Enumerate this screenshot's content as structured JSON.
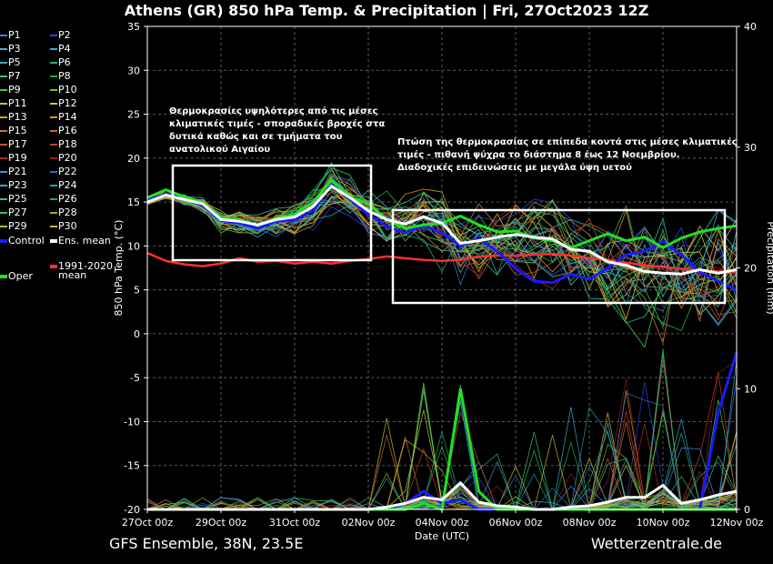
{
  "title": "Athens  (GR)  850 hPa Temp. & Precipitation | Fri, 27Oct2023 12Z",
  "footer": {
    "left": "GFS Ensemble, 38N, 23.5E",
    "right": "Wetterzentrale.de"
  },
  "annotations": {
    "left_box": [
      "Θερμοκρασίες υψηλότερες από τις μέσες",
      "κλιματικές τιμές - σποραδικές βροχές στα",
      "δυτικά καθώς και σε τμήματα του",
      "ανατολικού Αιγαίου"
    ],
    "right_box": [
      "Πτώση της θερμοκρασίας σε επίπεδα κοντά στις μέσες κλιματικές",
      "τιμές - πιθανή ψύχρα το διάστημα 8 έως 12 Νοεμβρίου.",
      "Διαδοχικές επιδεινώσεις με μεγάλα ύψη υετού"
    ]
  },
  "legend": {
    "members": [
      {
        "label": "P1",
        "color": "#4a7bd0"
      },
      {
        "label": "P2",
        "color": "#2a3fe0"
      },
      {
        "label": "P3",
        "color": "#5aa0e0"
      },
      {
        "label": "P4",
        "color": "#3aa8d8"
      },
      {
        "label": "P5",
        "color": "#2ab0b8"
      },
      {
        "label": "P6",
        "color": "#1fb870"
      },
      {
        "label": "P7",
        "color": "#28c890"
      },
      {
        "label": "P8",
        "color": "#20b040"
      },
      {
        "label": "P9",
        "color": "#40d040"
      },
      {
        "label": "P10",
        "color": "#78c020"
      },
      {
        "label": "P11",
        "color": "#c8c030"
      },
      {
        "label": "P12",
        "color": "#d8c040"
      },
      {
        "label": "P13",
        "color": "#d8a020"
      },
      {
        "label": "P14",
        "color": "#e08a20"
      },
      {
        "label": "P15",
        "color": "#c87838"
      },
      {
        "label": "P16",
        "color": "#c86a30"
      },
      {
        "label": "P17",
        "color": "#b85828"
      },
      {
        "label": "P18",
        "color": "#c04020"
      },
      {
        "label": "P19",
        "color": "#b02828"
      },
      {
        "label": "P20",
        "color": "#902020"
      },
      {
        "label": "P21",
        "color": "#4a88e0"
      },
      {
        "label": "P22",
        "color": "#3070c8"
      },
      {
        "label": "P23",
        "color": "#40a0c8"
      },
      {
        "label": "P24",
        "color": "#20a0b0"
      },
      {
        "label": "P25",
        "color": "#38b8a0"
      },
      {
        "label": "P26",
        "color": "#28a868"
      },
      {
        "label": "P27",
        "color": "#30c058"
      },
      {
        "label": "P28",
        "color": "#88b828"
      },
      {
        "label": "P29",
        "color": "#b8b830"
      },
      {
        "label": "P30",
        "color": "#d0b838"
      }
    ],
    "control": {
      "label": "Control",
      "color": "#1a1aff"
    },
    "ens_mean": {
      "label": "Ens. mean",
      "color": "#ffffff"
    },
    "oper": {
      "label": "Oper",
      "color": "#22e022"
    },
    "clim": {
      "label_line1": "1991-2020",
      "label_line2": "mean",
      "color": "#ff3030"
    }
  },
  "chart_data": {
    "type": "line",
    "xlabel": "Date (UTC)",
    "ylabel": "850 hPa Temp. (°C)",
    "y2label": "Precipitation (mm)",
    "ylim": [
      -20,
      35
    ],
    "y2lim": [
      0,
      40
    ],
    "yticks": [
      -20,
      -15,
      -10,
      -5,
      0,
      5,
      10,
      15,
      20,
      25,
      30,
      35
    ],
    "y2ticks": [
      0,
      10,
      20,
      30,
      40
    ],
    "x_tick_labels": [
      "27Oct 00z",
      "29Oct 00z",
      "31Oct 00z",
      "02Nov 00z",
      "04Nov 00z",
      "06Nov 00z",
      "08Nov 00z",
      "10Nov 00z",
      "12Nov 00z"
    ],
    "x_tick_hours": [
      0,
      48,
      96,
      144,
      192,
      240,
      288,
      336,
      384
    ],
    "xlim_hours": [
      0,
      384
    ],
    "grid": true,
    "clim_mean": {
      "hours": [
        0,
        12,
        24,
        36,
        48,
        60,
        72,
        84,
        96,
        108,
        120,
        132,
        144,
        156,
        168,
        180,
        192,
        204,
        216,
        228,
        240,
        252,
        264,
        276,
        288,
        300,
        312,
        324,
        336,
        348,
        360,
        372,
        384
      ],
      "values": [
        9.2,
        8.3,
        7.9,
        7.7,
        8.0,
        8.6,
        8.2,
        8.3,
        8.0,
        8.2,
        8.0,
        8.3,
        8.5,
        8.8,
        8.6,
        8.4,
        8.3,
        8.4,
        8.8,
        8.9,
        8.9,
        9.0,
        9.1,
        8.9,
        8.6,
        8.4,
        8.1,
        7.8,
        7.6,
        7.4,
        7.2,
        7.1,
        7.0
      ]
    },
    "ens_mean": {
      "hours": [
        0,
        12,
        24,
        36,
        48,
        60,
        72,
        84,
        96,
        108,
        120,
        132,
        144,
        156,
        168,
        180,
        192,
        204,
        216,
        228,
        240,
        252,
        264,
        276,
        288,
        300,
        312,
        324,
        336,
        348,
        360,
        372,
        384
      ],
      "temp": [
        15.0,
        15.8,
        15.3,
        14.8,
        13.0,
        12.8,
        12.4,
        13.0,
        13.3,
        14.5,
        16.8,
        15.5,
        14.0,
        13.0,
        12.5,
        13.3,
        12.6,
        10.3,
        10.6,
        11.0,
        11.3,
        11.0,
        10.8,
        9.6,
        9.4,
        8.2,
        7.8,
        7.1,
        6.9,
        6.8,
        7.3,
        6.9,
        7.3
      ],
      "precip": [
        0,
        0,
        0,
        0,
        0,
        0,
        0,
        0,
        0,
        0,
        0,
        0,
        0,
        0.2,
        0.5,
        1.0,
        0.8,
        2.2,
        0.6,
        0.3,
        0.2,
        0,
        0,
        0.2,
        0.3,
        0.6,
        1.0,
        1.0,
        2.0,
        0.5,
        0.8,
        1.2,
        1.5
      ]
    },
    "control": {
      "hours": [
        0,
        12,
        24,
        36,
        48,
        60,
        72,
        84,
        96,
        108,
        120,
        132,
        144,
        156,
        168,
        180,
        192,
        204,
        216,
        228,
        240,
        252,
        264,
        276,
        288,
        300,
        312,
        324,
        336,
        348,
        360,
        372,
        384
      ],
      "temp": [
        15.2,
        15.9,
        15.4,
        14.6,
        12.9,
        12.6,
        12.0,
        12.8,
        13.0,
        14.0,
        17.0,
        15.3,
        13.6,
        12.2,
        11.5,
        12.3,
        11.5,
        10.0,
        10.8,
        9.4,
        7.4,
        6.0,
        5.8,
        6.8,
        6.2,
        7.5,
        9.0,
        9.4,
        10.5,
        9.0,
        7.0,
        6.0,
        5.0
      ],
      "precip": [
        0,
        0,
        0,
        0,
        0,
        0,
        0,
        0,
        0,
        0,
        0,
        0,
        0,
        0,
        0.5,
        1.5,
        0.5,
        0.8,
        0,
        0,
        0,
        0,
        0,
        0,
        0,
        0,
        0,
        0,
        0,
        0,
        0,
        8,
        13
      ]
    },
    "oper": {
      "hours": [
        0,
        12,
        24,
        36,
        48,
        60,
        72,
        84,
        96,
        108,
        120,
        132,
        144,
        156,
        168,
        180,
        192,
        204,
        216,
        228,
        240,
        252,
        264,
        276,
        288,
        300,
        312,
        324,
        336,
        348,
        360,
        372,
        384
      ],
      "temp": [
        15.5,
        16.4,
        15.6,
        15.0,
        13.2,
        13.0,
        12.3,
        13.2,
        13.6,
        15.0,
        17.5,
        15.6,
        14.8,
        13.0,
        12.0,
        12.4,
        12.6,
        13.4,
        12.4,
        11.6,
        11.7,
        10.9,
        10.6,
        9.8,
        10.6,
        11.4,
        10.6,
        11.0,
        9.8,
        10.9,
        11.6,
        12.0,
        12.3
      ],
      "precip": [
        0,
        0,
        0,
        0,
        0,
        0,
        0,
        0,
        0,
        0,
        0,
        0,
        0,
        0,
        0,
        0.5,
        0,
        10,
        1.5,
        0,
        0,
        0,
        0,
        0,
        0,
        0,
        0,
        0,
        0,
        0,
        0,
        0,
        0
      ]
    }
  }
}
